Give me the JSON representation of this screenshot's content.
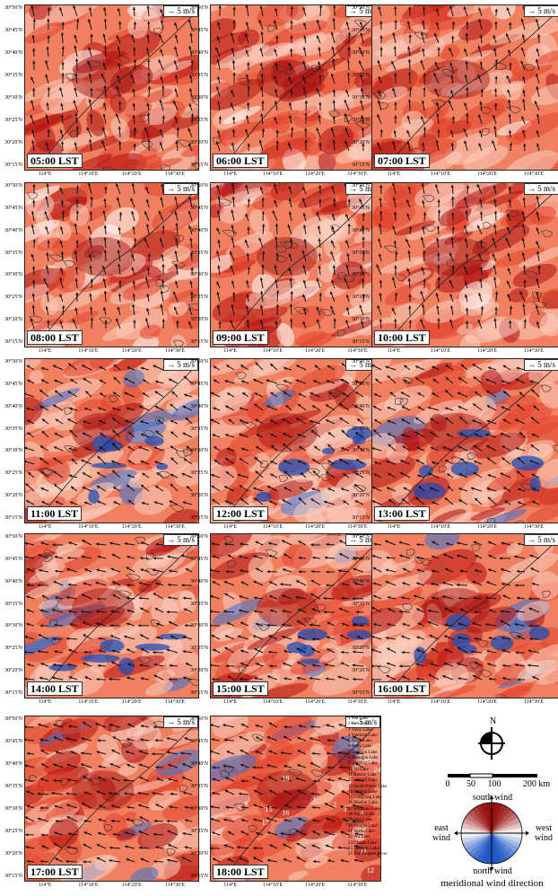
{
  "panels": [
    {
      "time": "05:00 LST",
      "scale": "5 m/s",
      "intensity": 0.75
    },
    {
      "time": "06:00 LST",
      "scale": "5 m/s",
      "intensity": 0.7
    },
    {
      "time": "07:00 LST",
      "scale": "5 m/s",
      "intensity": 0.55
    },
    {
      "time": "08:00 LST",
      "scale": "5 m/s",
      "intensity": 0.65
    },
    {
      "time": "09:00 LST",
      "scale": "5 m/s",
      "intensity": 0.65
    },
    {
      "time": "10:00 LST",
      "scale": "5 m/s",
      "intensity": 0.6
    },
    {
      "time": "11:00 LST",
      "scale": "5 m/s",
      "intensity": 0.5
    },
    {
      "time": "12:00 LST",
      "scale": "5 m/s",
      "intensity": 0.5
    },
    {
      "time": "13:00 LST",
      "scale": "5 m/s",
      "intensity": 0.45
    },
    {
      "time": "14:00 LST",
      "scale": "5 m/s",
      "intensity": 0.5
    },
    {
      "time": "15:00 LST",
      "scale": "5 m/s",
      "intensity": 0.55
    },
    {
      "time": "16:00 LST",
      "scale": "5 m/s",
      "intensity": 0.6
    },
    {
      "time": "17:00 LST",
      "scale": "5 m/s",
      "intensity": 0.75
    },
    {
      "time": "18:00 LST",
      "scale": "5 m/s",
      "intensity": 0.8
    }
  ],
  "lat_ticks": [
    "30°50′N",
    "30°45′N",
    "30°40′N",
    "30°35′N",
    "30°30′N",
    "30°25′N",
    "30°20′N",
    "30°15′N"
  ],
  "lon_ticks": [
    "114°E",
    "114°10′E",
    "114°20′E",
    "114°30′E"
  ],
  "map_labels": [
    "18",
    "22",
    "23",
    "24",
    "1",
    "2",
    "3",
    "4",
    "5",
    "15",
    "16",
    "17",
    "11",
    "12"
  ],
  "lakes": [
    "1  Sha Lake",
    "2  East Lake",
    "3  Yanxi Lake",
    "4  Yandong Lake",
    "5  South Lake",
    "6  Yezhi Lake",
    "7  Tangxun Lake",
    "8  Huangjia Lake",
    "9  Qingling Lake",
    "10  Yu Lake",
    "11  Baoxie Lake",
    "12  Liangzi Lake",
    "13  South Prince Lake",
    "14  Sanjiao Lake",
    "15  Longyang Lake",
    "16  Moshui Lake",
    "17  Houguan Lake",
    "18  Jinyin Lake",
    "19  Hou Lake",
    "20  Tongjia Lake",
    "21  Yezhu Lake",
    "22  Wu Lake",
    "23  Chaihu Lake",
    "24  Taojiadu Lake",
    "25  The Yangtze River"
  ],
  "legend": {
    "north": "N",
    "scale_ticks": [
      "0",
      "50",
      "100",
      "200 km"
    ],
    "south_wind": "south wind",
    "north_wind": "north wind",
    "east_wind_1": "east",
    "east_wind_2": "wind",
    "west_wind_1": "west",
    "west_wind_2": "wind",
    "caption": "meridional wind direction"
  },
  "colors": {
    "red": "#d7301f",
    "dark_red": "#8b0a0a",
    "blue": "#2c5fbf",
    "white": "#ffffff"
  }
}
